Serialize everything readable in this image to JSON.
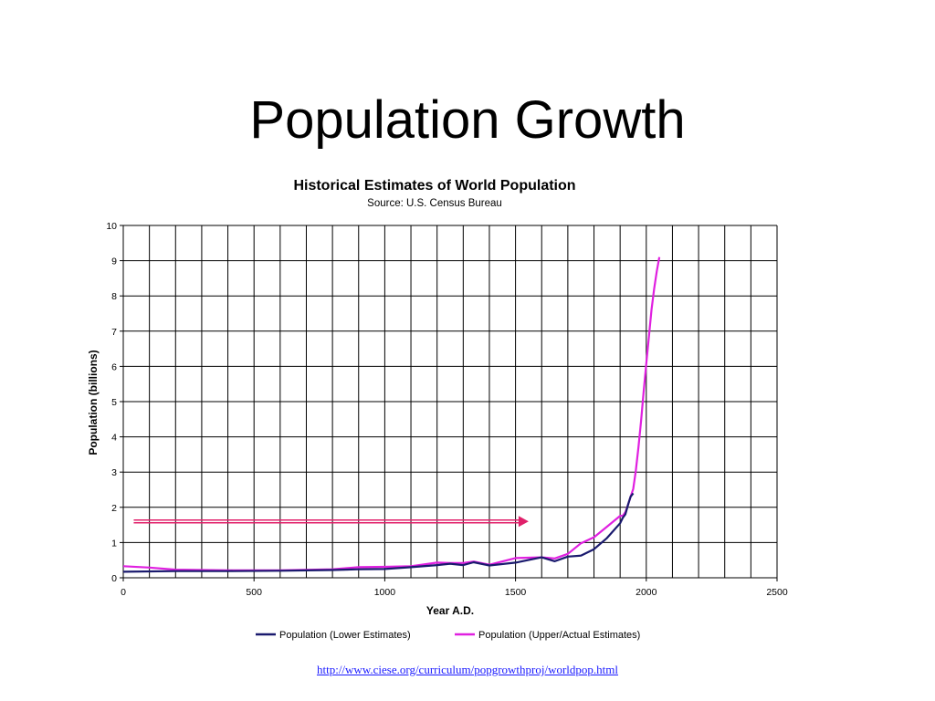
{
  "slide": {
    "title": "Population Growth",
    "link": "http://www.ciese.org/curriculum/popgrowthproj/worldpop.html"
  },
  "colors": {
    "lower": "#1a1a6e",
    "upper": "#e020e0",
    "arrow": "#e0206a",
    "grid": "#000000",
    "link": "#1a1aff"
  },
  "chart_data": {
    "type": "line",
    "title": "Historical Estimates of World Population",
    "subtitle": "Source: U.S. Census Bureau",
    "xlabel": "Year A.D.",
    "ylabel": "Population (billions)",
    "xlim": [
      0,
      2500
    ],
    "ylim": [
      0,
      10
    ],
    "xticks": [
      0,
      500,
      1000,
      1500,
      2000,
      2500
    ],
    "yticks": [
      0,
      1,
      2,
      3,
      4,
      5,
      6,
      7,
      8,
      9,
      10
    ],
    "grid": true,
    "legend_position": "bottom",
    "series": [
      {
        "name": "Population (Lower Estimates)",
        "color": "#1a1a6e",
        "x": [
          0,
          200,
          400,
          600,
          800,
          900,
          1000,
          1100,
          1200,
          1250,
          1300,
          1340,
          1400,
          1500,
          1600,
          1650,
          1700,
          1750,
          1800,
          1850,
          1900,
          1910,
          1920,
          1930,
          1940,
          1950
        ],
        "y": [
          0.17,
          0.19,
          0.19,
          0.2,
          0.22,
          0.24,
          0.25,
          0.3,
          0.36,
          0.4,
          0.36,
          0.44,
          0.35,
          0.43,
          0.58,
          0.47,
          0.6,
          0.63,
          0.81,
          1.13,
          1.55,
          1.7,
          1.8,
          2.07,
          2.3,
          2.4
        ]
      },
      {
        "name": "Population (Upper/Actual Estimates)",
        "color": "#e020e0",
        "x": [
          0,
          100,
          200,
          400,
          600,
          800,
          900,
          1000,
          1100,
          1200,
          1250,
          1300,
          1340,
          1400,
          1500,
          1600,
          1650,
          1700,
          1750,
          1800,
          1850,
          1900,
          1910,
          1920,
          1930,
          1940,
          1950,
          1960,
          1970,
          1980,
          1990,
          2000,
          2010,
          2020,
          2030,
          2040,
          2050
        ],
        "y": [
          0.33,
          0.29,
          0.23,
          0.21,
          0.21,
          0.24,
          0.3,
          0.31,
          0.33,
          0.43,
          0.42,
          0.42,
          0.46,
          0.37,
          0.56,
          0.58,
          0.55,
          0.68,
          0.98,
          1.15,
          1.45,
          1.76,
          1.76,
          1.86,
          2.07,
          2.3,
          2.52,
          3.03,
          3.7,
          4.45,
          5.28,
          6.08,
          6.85,
          7.6,
          8.2,
          8.7,
          9.1
        ]
      }
    ],
    "annotations": [
      {
        "type": "arrow",
        "x0": 40,
        "x1": 1550,
        "y": 1.6
      }
    ]
  }
}
